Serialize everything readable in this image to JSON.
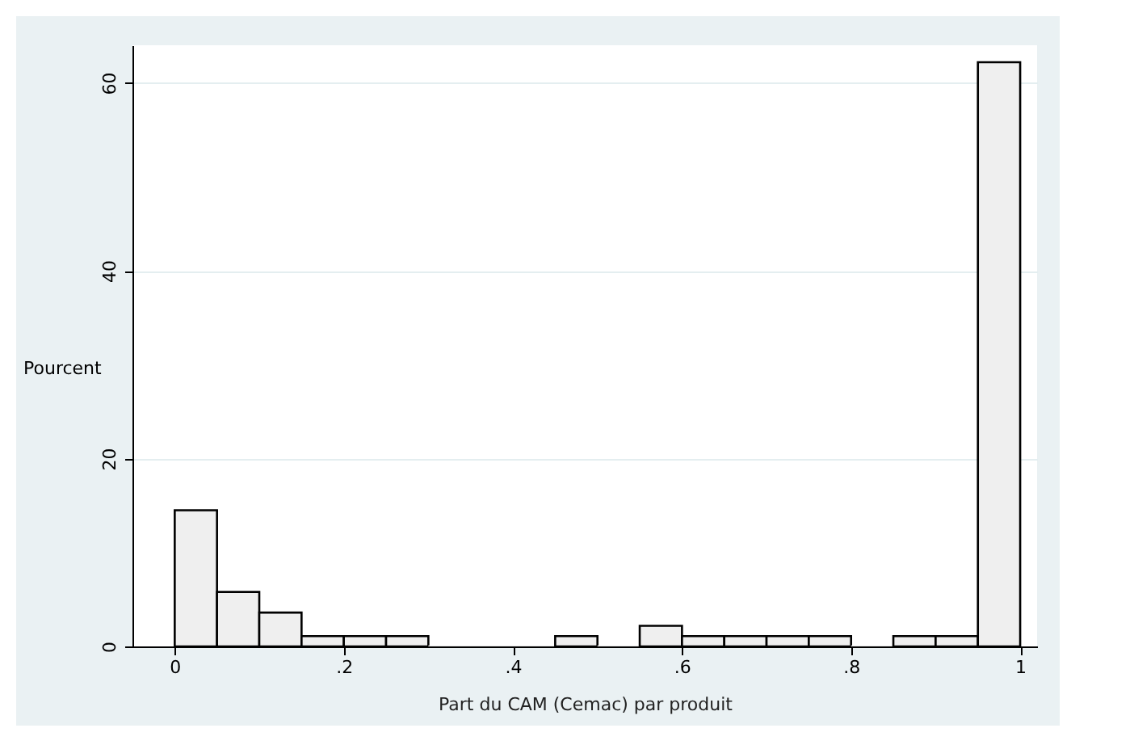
{
  "chart_data": {
    "type": "histogram",
    "xlabel": "Part du CAM (Cemac) par produit",
    "ylabel": "Pourcent",
    "bins": [
      0,
      0.05,
      0.1,
      0.15,
      0.2,
      0.25,
      0.3,
      0.35,
      0.4,
      0.45,
      0.5,
      0.55,
      0.6,
      0.65,
      0.7,
      0.75,
      0.8,
      0.85,
      0.9,
      0.95,
      1
    ],
    "values": [
      14.5,
      5.8,
      3.6,
      1.1,
      1.1,
      1.1,
      0,
      0,
      0,
      1.1,
      0,
      2.2,
      1.1,
      1.1,
      1.1,
      1.1,
      0,
      1.1,
      1.1,
      62.2
    ],
    "color": "#efefef",
    "xlim": [
      -0.05,
      1.02
    ],
    "xticks": [
      0,
      {
        "value": 0.2,
        "label": ".2"
      },
      {
        "value": 0.4,
        "label": ".4"
      },
      {
        "value": 0.6,
        "label": ".6"
      },
      {
        "value": 0.8,
        "label": ".8"
      },
      1
    ],
    "ylim": [
      0,
      64
    ],
    "yticks": [
      0,
      20,
      40,
      60
    ],
    "grid": "y"
  }
}
